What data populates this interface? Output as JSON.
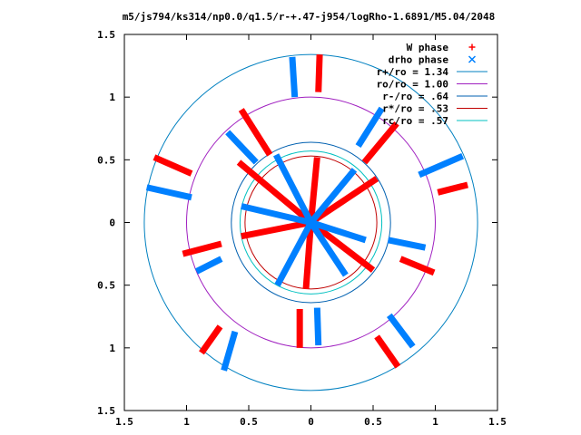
{
  "chart_data": {
    "type": "scatter",
    "title": "m5/js794/ks314/np0.0/q1.5/r-+.47-j954/logRho-1.6891/M5.04/2048",
    "xlabel": "",
    "ylabel": "",
    "xlim": [
      -1.5,
      1.5
    ],
    "ylim": [
      -1.5,
      1.5
    ],
    "x_tick_labels": [
      "1.5",
      "1",
      "0.5",
      "0",
      "0.5",
      "1",
      "1.5"
    ],
    "y_tick_labels": [
      "1.5",
      "1",
      "0.5",
      "0",
      "0.5",
      "1",
      "1.5"
    ],
    "tick_values": [
      -1.5,
      -1,
      -0.5,
      0,
      0.5,
      1,
      1.5
    ],
    "grid": false,
    "legend_position": "top-right",
    "series": [
      {
        "name": "W phase",
        "marker": "+",
        "color": "#ff0000",
        "segments": [
          [
            [
              0.07,
              1.34
            ],
            [
              0.06,
              1.04
            ]
          ],
          [
            [
              -0.56,
              0.9
            ],
            [
              -0.33,
              0.54
            ]
          ],
          [
            [
              0.69,
              0.79
            ],
            [
              0.43,
              0.48
            ]
          ],
          [
            [
              -1.26,
              0.52
            ],
            [
              -0.96,
              0.39
            ]
          ],
          [
            [
              1.26,
              0.3
            ],
            [
              1.02,
              0.24
            ]
          ],
          [
            [
              -1.03,
              -0.25
            ],
            [
              -0.72,
              -0.17
            ]
          ],
          [
            [
              0.99,
              -0.4
            ],
            [
              0.72,
              -0.29
            ]
          ],
          [
            [
              -0.73,
              -0.83
            ],
            [
              -0.88,
              -1.04
            ]
          ],
          [
            [
              0.53,
              -0.91
            ],
            [
              0.7,
              -1.15
            ]
          ],
          [
            [
              -0.09,
              -0.69
            ],
            [
              -0.09,
              -1.0
            ]
          ],
          [
            [
              0.0,
              0.0
            ],
            [
              -0.58,
              0.48
            ]
          ],
          [
            [
              0.0,
              0.0
            ],
            [
              0.53,
              0.35
            ]
          ],
          [
            [
              0.0,
              0.0
            ],
            [
              -0.56,
              -0.11
            ]
          ],
          [
            [
              0.0,
              0.0
            ],
            [
              0.5,
              -0.38
            ]
          ],
          [
            [
              0.0,
              0.0
            ],
            [
              -0.04,
              -0.53
            ]
          ],
          [
            [
              0.0,
              0.0
            ],
            [
              0.05,
              0.52
            ]
          ]
        ]
      },
      {
        "name": "drho phase",
        "marker": "x",
        "color": "#0080ff",
        "segments": [
          [
            [
              -0.15,
              1.32
            ],
            [
              -0.13,
              1.0
            ]
          ],
          [
            [
              -0.67,
              0.72
            ],
            [
              -0.44,
              0.48
            ]
          ],
          [
            [
              0.57,
              0.91
            ],
            [
              0.38,
              0.61
            ]
          ],
          [
            [
              -1.32,
              0.28
            ],
            [
              -0.96,
              0.2
            ]
          ],
          [
            [
              1.22,
              0.53
            ],
            [
              0.87,
              0.38
            ]
          ],
          [
            [
              -0.92,
              -0.39
            ],
            [
              -0.72,
              -0.29
            ]
          ],
          [
            [
              0.92,
              -0.2
            ],
            [
              0.62,
              -0.14
            ]
          ],
          [
            [
              -0.61,
              -0.87
            ],
            [
              -0.7,
              -1.18
            ]
          ],
          [
            [
              0.63,
              -0.74
            ],
            [
              0.82,
              -0.99
            ]
          ],
          [
            [
              0.05,
              -0.68
            ],
            [
              0.06,
              -0.98
            ]
          ],
          [
            [
              0.0,
              0.0
            ],
            [
              -0.28,
              0.54
            ]
          ],
          [
            [
              0.0,
              0.0
            ],
            [
              0.35,
              0.42
            ]
          ],
          [
            [
              0.0,
              0.0
            ],
            [
              -0.56,
              0.13
            ]
          ],
          [
            [
              0.0,
              0.0
            ],
            [
              0.44,
              -0.14
            ]
          ],
          [
            [
              0.0,
              0.0
            ],
            [
              -0.27,
              -0.5
            ]
          ],
          [
            [
              0.0,
              0.0
            ],
            [
              0.28,
              -0.42
            ]
          ]
        ]
      }
    ],
    "circles": [
      {
        "name": "r+/ro = 1.34",
        "r": 1.34,
        "color": "#0080c0"
      },
      {
        "name": "ro/ro = 1.00",
        "r": 1.0,
        "color": "#a020c0"
      },
      {
        "name": "r-/ro = .64",
        "r": 0.64,
        "color": "#0060b0"
      },
      {
        "name": "r*/ro = .53",
        "r": 0.53,
        "color": "#c00000"
      },
      {
        "name": "rc/ro = .57",
        "r": 0.57,
        "color": "#00c0c0"
      }
    ]
  }
}
